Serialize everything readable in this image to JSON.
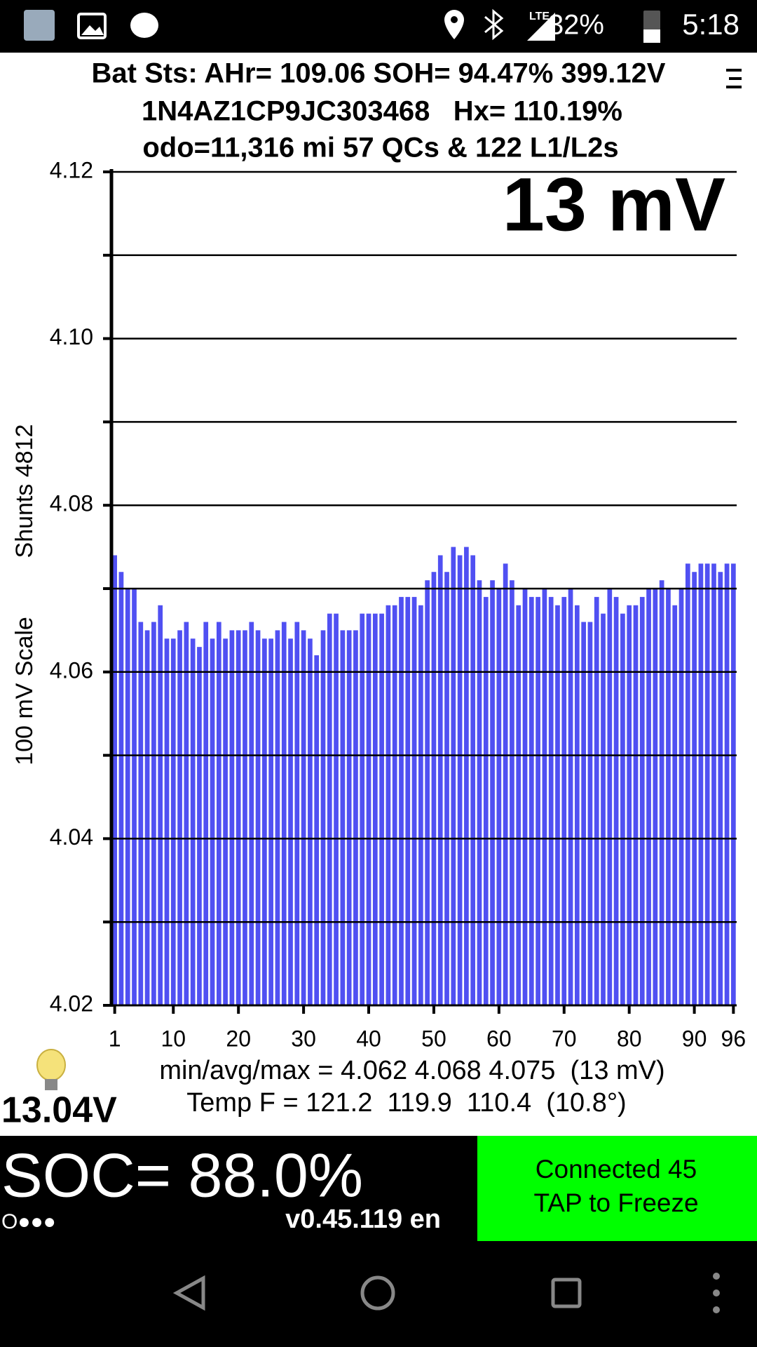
{
  "status_bar": {
    "network": "LTE",
    "battery": "32%",
    "time": "5:18"
  },
  "header": {
    "lines": [
      "Bat Sts: AHr= 109.06 SOH= 94.47% 399.12V",
      "1N4AZ1CP9JC303468   Hx= 110.19%",
      "odo=11,316 mi 57 QCs & 122 L1/L2s"
    ]
  },
  "chart_data": {
    "type": "bar",
    "annotation": "13 mV",
    "y_label": [
      "100 mV Scale",
      "Shunts 4812"
    ],
    "x": [
      1,
      2,
      3,
      4,
      5,
      6,
      7,
      8,
      9,
      10,
      11,
      12,
      13,
      14,
      15,
      16,
      17,
      18,
      19,
      20,
      21,
      22,
      23,
      24,
      25,
      26,
      27,
      28,
      29,
      30,
      31,
      32,
      33,
      34,
      35,
      36,
      37,
      38,
      39,
      40,
      41,
      42,
      43,
      44,
      45,
      46,
      47,
      48,
      49,
      50,
      51,
      52,
      53,
      54,
      55,
      56,
      57,
      58,
      59,
      60,
      61,
      62,
      63,
      64,
      65,
      66,
      67,
      68,
      69,
      70,
      71,
      72,
      73,
      74,
      75,
      76,
      77,
      78,
      79,
      80,
      81,
      82,
      83,
      84,
      85,
      86,
      87,
      88,
      89,
      90,
      91,
      92,
      93,
      94,
      95,
      96
    ],
    "values": [
      4.074,
      4.072,
      4.07,
      4.07,
      4.066,
      4.065,
      4.066,
      4.068,
      4.064,
      4.064,
      4.065,
      4.066,
      4.064,
      4.063,
      4.066,
      4.064,
      4.066,
      4.064,
      4.065,
      4.065,
      4.065,
      4.066,
      4.065,
      4.064,
      4.064,
      4.065,
      4.066,
      4.064,
      4.066,
      4.065,
      4.064,
      4.062,
      4.065,
      4.067,
      4.067,
      4.065,
      4.065,
      4.065,
      4.067,
      4.067,
      4.067,
      4.067,
      4.068,
      4.068,
      4.069,
      4.069,
      4.069,
      4.068,
      4.071,
      4.072,
      4.074,
      4.072,
      4.075,
      4.074,
      4.075,
      4.074,
      4.071,
      4.069,
      4.071,
      4.07,
      4.073,
      4.071,
      4.068,
      4.07,
      4.069,
      4.069,
      4.07,
      4.069,
      4.068,
      4.069,
      4.07,
      4.068,
      4.066,
      4.066,
      4.069,
      4.067,
      4.07,
      4.069,
      4.067,
      4.068,
      4.068,
      4.069,
      4.07,
      4.07,
      4.071,
      4.07,
      4.068,
      4.07,
      4.073,
      4.072,
      4.073,
      4.073,
      4.073,
      4.072,
      4.073,
      4.073
    ],
    "color": "#5050f2",
    "xlim": [
      0.5,
      96.5
    ],
    "xticks": [
      1,
      10,
      20,
      30,
      40,
      50,
      60,
      70,
      80,
      90,
      96
    ],
    "ylim": [
      4.02,
      4.12
    ],
    "yticks": [
      4.02,
      4.04,
      4.06,
      4.08,
      {
        "value": 4.1,
        "label": "4.10"
      },
      4.12
    ],
    "yminor": [
      4.03,
      4.05,
      4.07,
      4.09,
      4.11
    ],
    "grid": true
  },
  "footer": {
    "stats": "min/avg/max = 4.062 4.068 4.075  (13 mV)",
    "temp": "Temp F = 121.2  119.9  110.4  (10.8°)",
    "voltage": "13.04V",
    "soc": "SOC= 88.0%",
    "dots": "O●●●",
    "version": "v0.45.119 en",
    "connected": "Connected 45",
    "tap": "TAP to Freeze"
  }
}
